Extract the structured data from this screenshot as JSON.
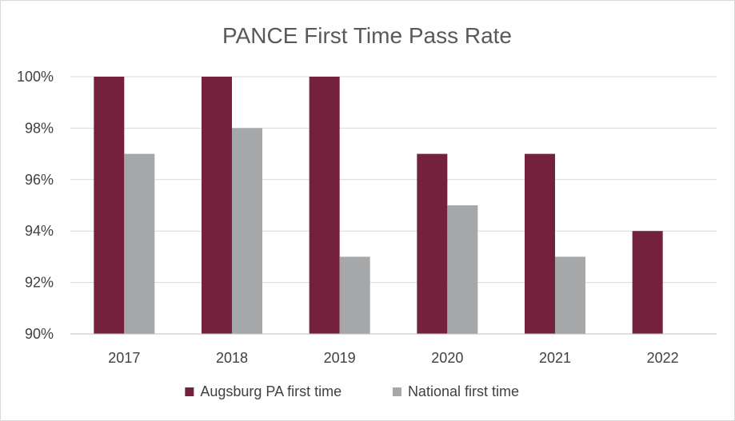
{
  "chart_data": {
    "type": "bar",
    "title": "PANCE First Time Pass Rate",
    "xlabel": "",
    "ylabel": "",
    "categories": [
      "2017",
      "2018",
      "2019",
      "2020",
      "2021",
      "2022"
    ],
    "series": [
      {
        "name": "Augsburg PA first time",
        "color": "#74213d",
        "values": [
          100,
          100,
          100,
          97,
          97,
          94
        ]
      },
      {
        "name": "National first time",
        "color": "#a6a7a9",
        "values": [
          97,
          98,
          93,
          95,
          93,
          null
        ]
      }
    ],
    "ylim": [
      90,
      100
    ],
    "yticks": [
      90,
      92,
      94,
      96,
      98,
      100
    ],
    "ytick_labels": [
      "90%",
      "92%",
      "94%",
      "96%",
      "98%",
      "100%"
    ],
    "grid": true,
    "legend_position": "bottom"
  }
}
